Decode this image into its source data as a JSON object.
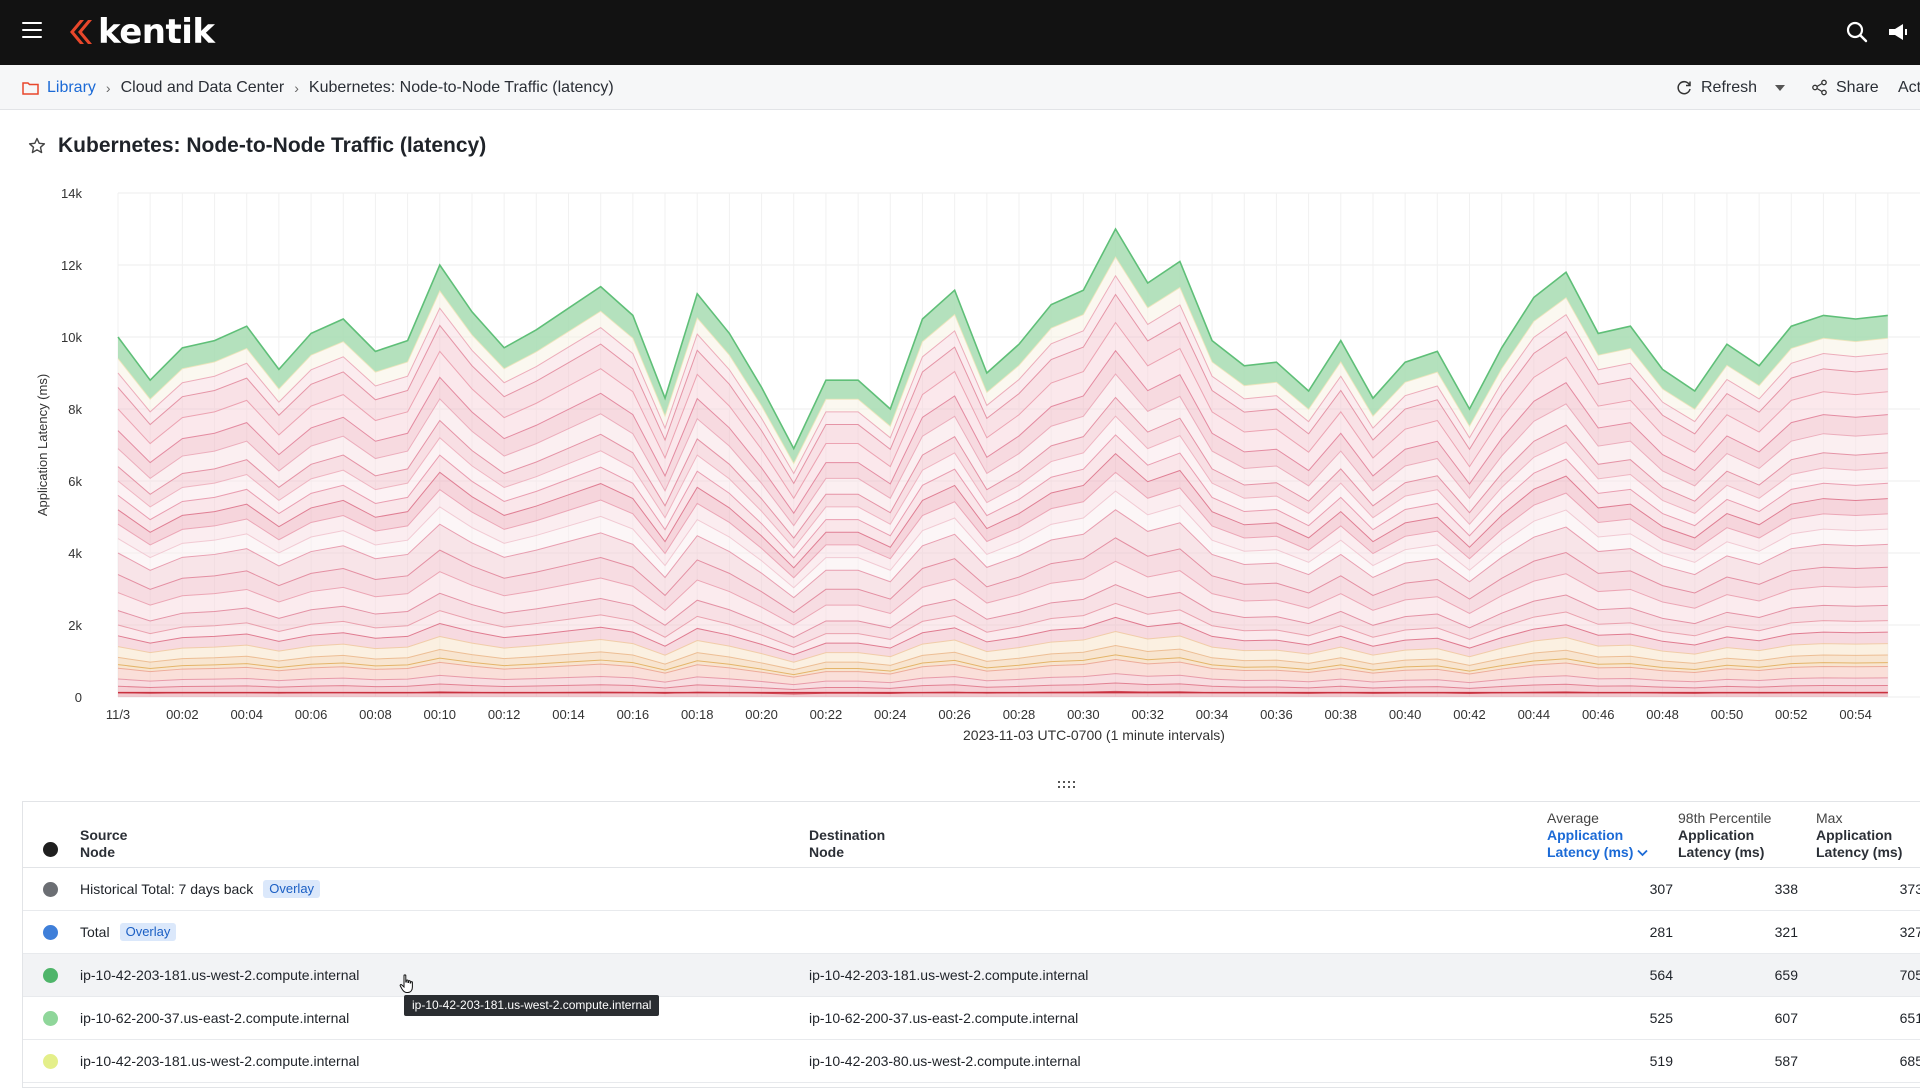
{
  "app": {
    "brand": "kentik",
    "accent_color": "#e8472b"
  },
  "breadcrumb": {
    "items": [
      "Library",
      "Cloud and Data Center",
      "Kubernetes: Node-to-Node Traffic (latency)"
    ]
  },
  "actions": {
    "refresh_label": "Refresh",
    "share_label": "Share",
    "actions_label": "Act"
  },
  "page": {
    "title": "Kubernetes: Node-to-Node Traffic (latency)"
  },
  "chart_data": {
    "type": "area",
    "title": "",
    "xlabel": "2023-11-03 UTC-0700 (1 minute intervals)",
    "ylabel": "Application Latency (ms)",
    "ylim": [
      0,
      14000
    ],
    "y_ticks": [
      "0",
      "2k",
      "4k",
      "6k",
      "8k",
      "10k",
      "12k",
      "14k"
    ],
    "x_ticks": [
      "11/3",
      "00:02",
      "00:04",
      "00:06",
      "00:08",
      "00:10",
      "00:12",
      "00:14",
      "00:16",
      "00:18",
      "00:20",
      "00:22",
      "00:24",
      "00:26",
      "00:28",
      "00:30",
      "00:32",
      "00:34",
      "00:36",
      "00:38",
      "00:40",
      "00:42",
      "00:44",
      "00:46",
      "00:48",
      "00:50",
      "00:52",
      "00:54"
    ],
    "x": [
      "00:00",
      "00:01",
      "00:02",
      "00:03",
      "00:04",
      "00:05",
      "00:06",
      "00:07",
      "00:08",
      "00:09",
      "00:10",
      "00:11",
      "00:12",
      "00:13",
      "00:14",
      "00:15",
      "00:16",
      "00:17",
      "00:18",
      "00:19",
      "00:20",
      "00:21",
      "00:22",
      "00:23",
      "00:24",
      "00:25",
      "00:26",
      "00:27",
      "00:28",
      "00:29",
      "00:30",
      "00:31",
      "00:32",
      "00:33",
      "00:34",
      "00:35",
      "00:36",
      "00:37",
      "00:38",
      "00:39",
      "00:40",
      "00:41",
      "00:42",
      "00:43",
      "00:44",
      "00:45",
      "00:46",
      "00:47",
      "00:48",
      "00:49",
      "00:50",
      "00:51",
      "00:52",
      "00:53",
      "00:54",
      "00:55"
    ],
    "stack_total": [
      10000,
      8800,
      9700,
      9900,
      10300,
      9100,
      10100,
      10500,
      9600,
      9900,
      12000,
      10700,
      9700,
      10200,
      10800,
      11400,
      10600,
      8300,
      11200,
      10100,
      8600,
      6900,
      8800,
      8800,
      8000,
      10500,
      11300,
      9000,
      9800,
      10900,
      11300,
      13000,
      11500,
      12100,
      9900,
      9200,
      9300,
      8500,
      9900,
      8300,
      9300,
      9600,
      8000,
      9700,
      11100,
      11800,
      10100,
      10300,
      9100,
      8500,
      9800,
      9200,
      10300,
      10600,
      10500,
      10600
    ],
    "colors": {
      "top_band": "#5fbf78",
      "middle_band": "#e06a86",
      "lower_band": "#d9536e",
      "base_line": "#c9303e"
    }
  },
  "table": {
    "columns": {
      "source_l1": "Source",
      "source_l2": "Node",
      "dest_l1": "Destination",
      "dest_l2": "Node",
      "avg_l1": "Average",
      "avg_l2": "Application",
      "avg_l3": "Latency (ms)",
      "p98_l1": "98th Percentile",
      "p98_l2": "Application",
      "p98_l3": "Latency (ms)",
      "max_l1": "Max",
      "max_l2": "Application",
      "max_l3": "Latency (ms)"
    },
    "rows": [
      {
        "dot": "#6b6e73",
        "source": "Historical Total: 7 days back",
        "badge": "Overlay",
        "destination": "",
        "avg": "307",
        "p98": "338",
        "max": "373"
      },
      {
        "dot": "#3f7fd9",
        "source": "Total",
        "badge": "Overlay",
        "destination": "",
        "avg": "281",
        "p98": "321",
        "max": "327"
      },
      {
        "dot": "#4fb56a",
        "source": "ip-10-42-203-181.us-west-2.compute.internal",
        "badge": "",
        "destination": "ip-10-42-203-181.us-west-2.compute.internal",
        "avg": "564",
        "p98": "659",
        "max": "705"
      },
      {
        "dot": "#8fd69a",
        "source": "ip-10-62-200-37.us-east-2.compute.internal",
        "badge": "",
        "destination": "ip-10-62-200-37.us-east-2.compute.internal",
        "avg": "525",
        "p98": "607",
        "max": "651"
      },
      {
        "dot": "#e4ef8a",
        "source": "ip-10-42-203-181.us-west-2.compute.internal",
        "badge": "",
        "destination": "ip-10-42-203-80.us-west-2.compute.internal",
        "avg": "519",
        "p98": "587",
        "max": "685"
      }
    ]
  },
  "tooltip": {
    "text": "ip-10-42-203-181.us-west-2.compute.internal"
  }
}
